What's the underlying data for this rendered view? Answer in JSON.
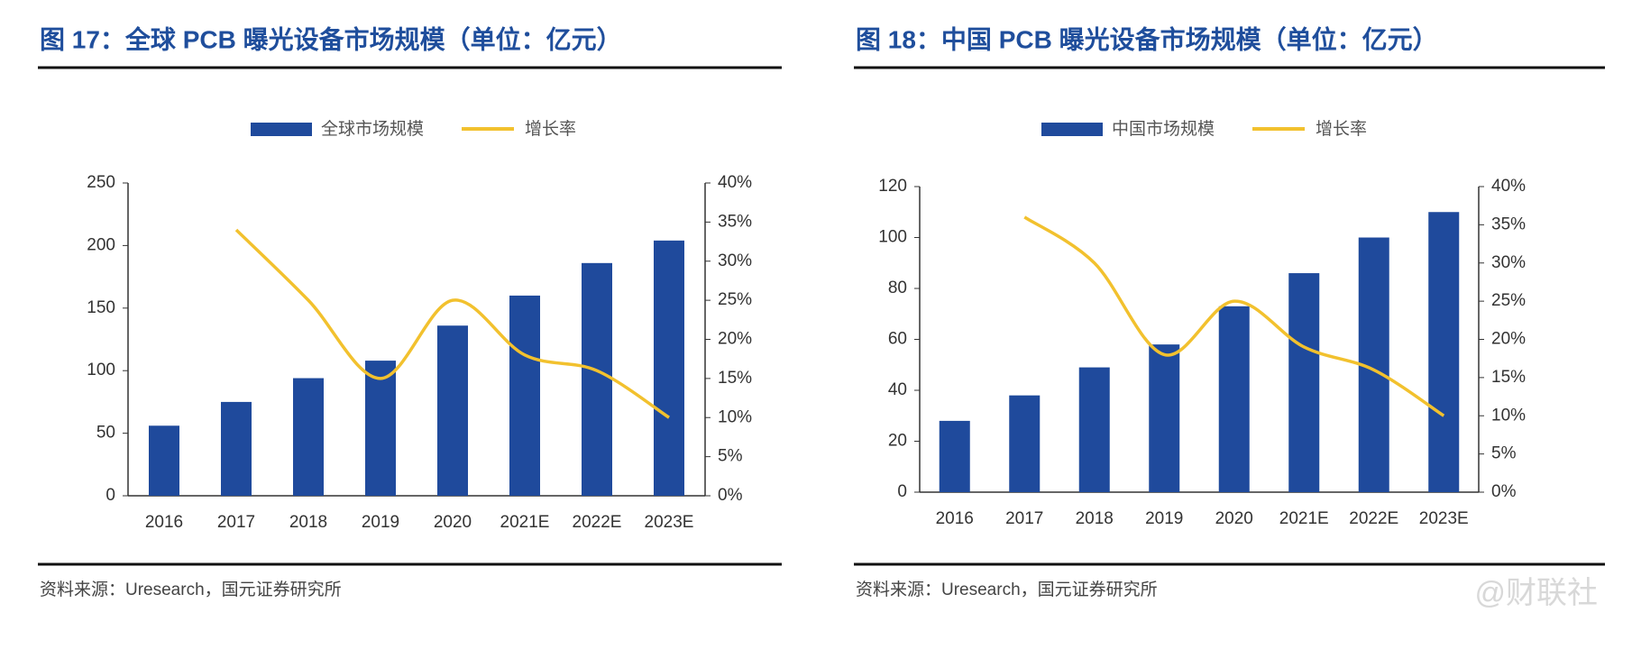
{
  "chart_data": [
    {
      "type": "bar",
      "title": "图 17：全球 PCB 曝光设备市场规模（单位：亿元）",
      "categories": [
        "2016",
        "2017",
        "2018",
        "2019",
        "2020",
        "2021E",
        "2022E",
        "2023E"
      ],
      "series": [
        {
          "name": "全球市场规模",
          "color": "#1f4a9c",
          "values": [
            56,
            75,
            94,
            108,
            136,
            160,
            186,
            204
          ]
        },
        {
          "name": "增长率",
          "type": "line",
          "axis": "y2",
          "color": "#f2c12e",
          "values": [
            null,
            34,
            25,
            15,
            25,
            18,
            16,
            10
          ]
        }
      ],
      "ylim": [
        0,
        250
      ],
      "yticks": [
        0,
        50,
        100,
        150,
        200,
        250
      ],
      "y2lim": [
        0,
        40
      ],
      "y2ticks": [
        {
          "value": 0,
          "label": "0%"
        },
        {
          "value": 5,
          "label": "5%"
        },
        {
          "value": 10,
          "label": "10%"
        },
        {
          "value": 15,
          "label": "15%"
        },
        {
          "value": 20,
          "label": "20%"
        },
        {
          "value": 25,
          "label": "25%"
        },
        {
          "value": 30,
          "label": "30%"
        },
        {
          "value": 35,
          "label": "35%"
        },
        {
          "value": 40,
          "label": "40%"
        }
      ],
      "source": "资料来源：Uresearch，国元证券研究所"
    },
    {
      "type": "bar",
      "title": "图 18：中国 PCB 曝光设备市场规模（单位：亿元）",
      "categories": [
        "2016",
        "2017",
        "2018",
        "2019",
        "2020",
        "2021E",
        "2022E",
        "2023E"
      ],
      "series": [
        {
          "name": "中国市场规模",
          "color": "#1f4a9c",
          "values": [
            28,
            38,
            49,
            58,
            73,
            86,
            100,
            110
          ]
        },
        {
          "name": "增长率",
          "type": "line",
          "axis": "y2",
          "color": "#f2c12e",
          "values": [
            null,
            36,
            30,
            18,
            25,
            19,
            16,
            10
          ]
        }
      ],
      "ylim": [
        0,
        120
      ],
      "yticks": [
        0,
        20,
        40,
        60,
        80,
        100,
        120
      ],
      "y2lim": [
        0,
        40
      ],
      "y2ticks": [
        {
          "value": 0,
          "label": "0%"
        },
        {
          "value": 5,
          "label": "5%"
        },
        {
          "value": 10,
          "label": "10%"
        },
        {
          "value": 15,
          "label": "15%"
        },
        {
          "value": 20,
          "label": "20%"
        },
        {
          "value": 25,
          "label": "25%"
        },
        {
          "value": 30,
          "label": "30%"
        },
        {
          "value": 35,
          "label": "35%"
        },
        {
          "value": 40,
          "label": "40%"
        }
      ],
      "source": "资料来源：Uresearch，国元证券研究所"
    }
  ],
  "watermark": "@财联社"
}
